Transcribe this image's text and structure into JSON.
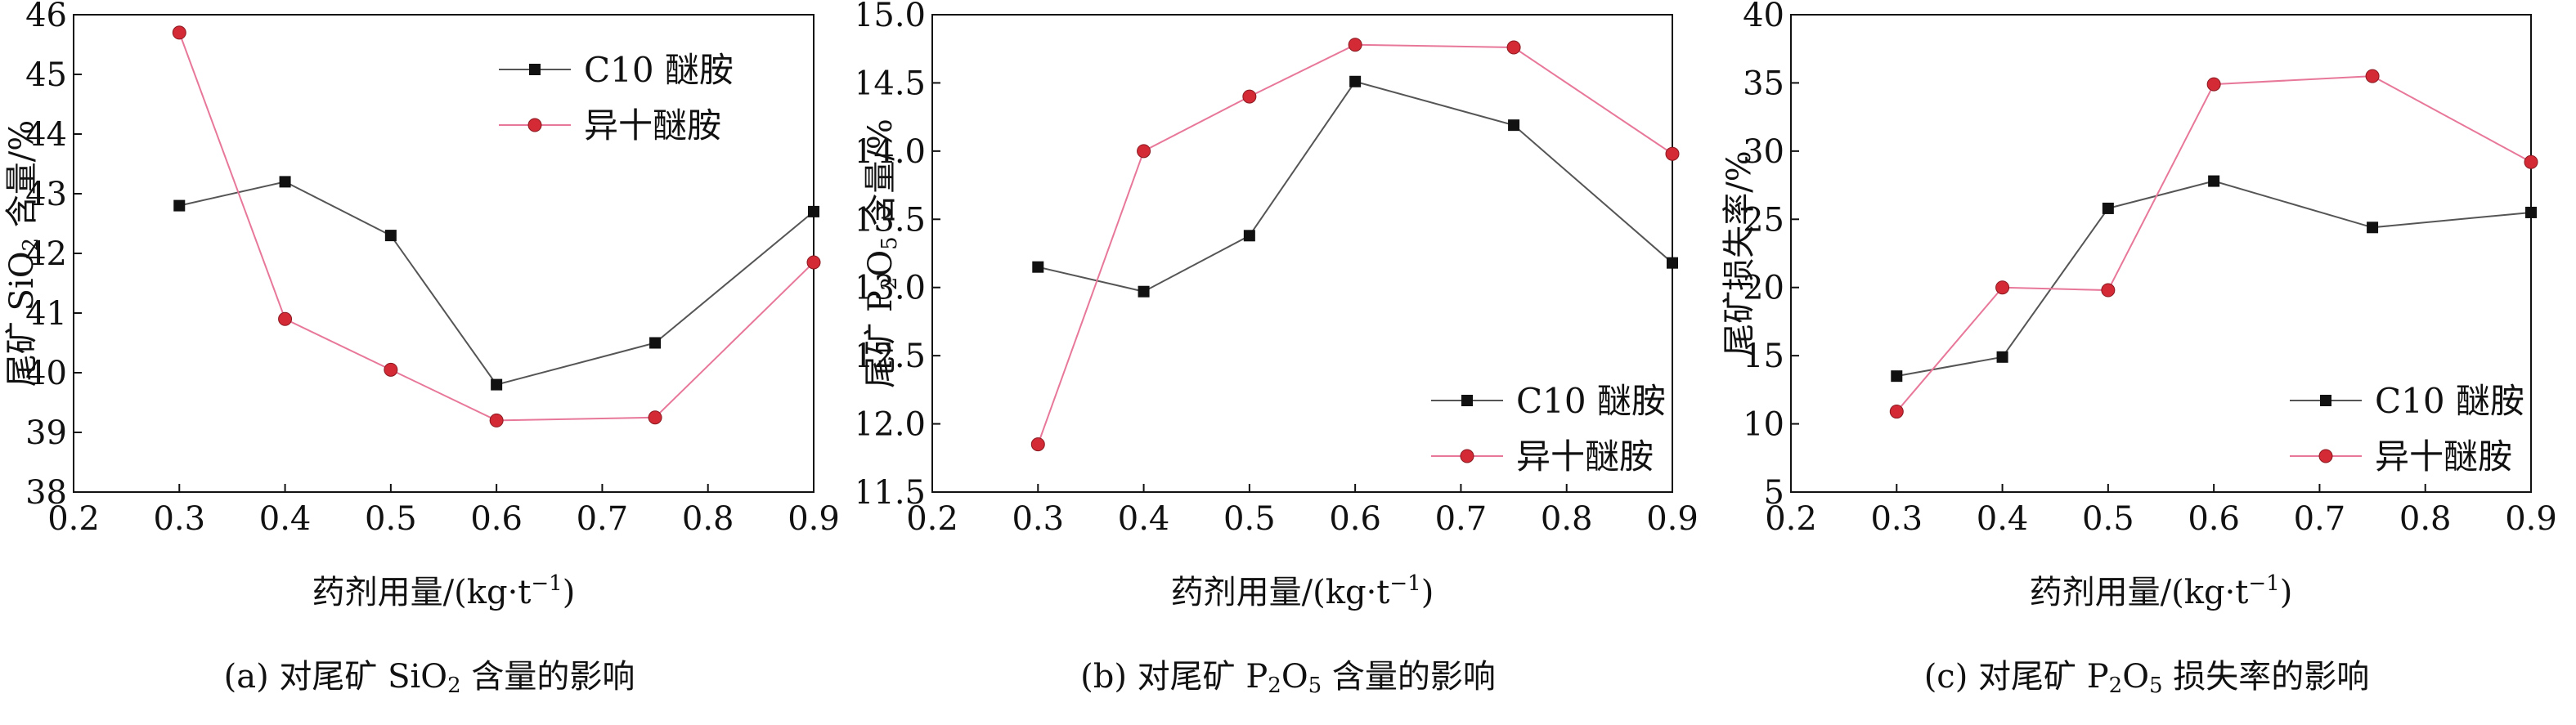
{
  "chart_data": [
    {
      "type": "line",
      "caption": {
        "pre": "(a) 对尾矿 SiO",
        "sub": "2",
        "post": " 含量的影响"
      },
      "xlabel": "药剂用量/(kg·t",
      "xlabel_sup": "−1",
      "xlabel_end": ")",
      "ylabel": {
        "pre": "尾矿 SiO",
        "sub": "2",
        "post": " 含量/%"
      },
      "xlim": [
        0.2,
        0.9
      ],
      "ylim": [
        38,
        46
      ],
      "xticks": [
        "0.2",
        "0.3",
        "0.4",
        "0.5",
        "0.6",
        "0.7",
        "0.8",
        "0.9"
      ],
      "yticks": [
        "38",
        "39",
        "40",
        "41",
        "42",
        "43",
        "44",
        "45",
        "46"
      ],
      "legend": "top-right",
      "x": [
        0.3,
        0.4,
        0.5,
        0.6,
        0.75,
        0.9
      ],
      "series": [
        {
          "name": "C10 醚胺",
          "color": "#555555",
          "markerColor": "#111111",
          "marker": "square",
          "values": [
            42.8,
            43.2,
            42.3,
            39.8,
            40.5,
            42.7
          ]
        },
        {
          "name": "异十醚胺",
          "color": "#e8789a",
          "markerColor": "#d42a35",
          "marker": "circle",
          "values": [
            45.7,
            40.9,
            40.05,
            39.2,
            39.25,
            41.85
          ]
        }
      ]
    },
    {
      "type": "line",
      "caption": {
        "pre": "(b) 对尾矿 P",
        "sub": "2",
        "mid": "O",
        "sub2": "5",
        "post": " 含量的影响"
      },
      "xlabel": "药剂用量/(kg·t",
      "xlabel_sup": "−1",
      "xlabel_end": ")",
      "ylabel": {
        "pre": "尾矿 P",
        "sub": "2",
        "mid": "O",
        "sub2": "5",
        "post": " 含量/%"
      },
      "xlim": [
        0.2,
        0.9
      ],
      "ylim": [
        11.5,
        15.0
      ],
      "xticks": [
        "0.2",
        "0.3",
        "0.4",
        "0.5",
        "0.6",
        "0.7",
        "0.8",
        "0.9"
      ],
      "yticks": [
        "11.5",
        "12.0",
        "12.5",
        "13.0",
        "13.5",
        "14.0",
        "14.5",
        "15.0"
      ],
      "legend": "bottom-right",
      "x": [
        0.3,
        0.4,
        0.5,
        0.6,
        0.75,
        0.9
      ],
      "series": [
        {
          "name": "C10 醚胺",
          "color": "#555555",
          "markerColor": "#111111",
          "marker": "square",
          "values": [
            13.15,
            12.97,
            13.38,
            14.51,
            14.19,
            13.18
          ]
        },
        {
          "name": "异十醚胺",
          "color": "#e8789a",
          "markerColor": "#d42a35",
          "marker": "circle",
          "values": [
            11.85,
            14.0,
            14.4,
            14.78,
            14.76,
            13.98
          ]
        }
      ]
    },
    {
      "type": "line",
      "caption": {
        "pre": "(c) 对尾矿 P",
        "sub": "2",
        "mid": "O",
        "sub2": "5",
        "post": " 损失率的影响"
      },
      "xlabel": "药剂用量/(kg·t",
      "xlabel_sup": "−1",
      "xlabel_end": ")",
      "ylabel": {
        "pre": "尾矿损失率/%"
      },
      "xlim": [
        0.2,
        0.9
      ],
      "ylim": [
        5,
        40
      ],
      "xticks": [
        "0.2",
        "0.3",
        "0.4",
        "0.5",
        "0.6",
        "0.7",
        "0.8",
        "0.9"
      ],
      "yticks": [
        "5",
        "10",
        "15",
        "20",
        "25",
        "30",
        "35",
        "40"
      ],
      "legend": "bottom-right",
      "x": [
        0.3,
        0.4,
        0.5,
        0.6,
        0.75,
        0.9
      ],
      "series": [
        {
          "name": "C10 醚胺",
          "color": "#555555",
          "markerColor": "#111111",
          "marker": "square",
          "values": [
            13.5,
            14.9,
            25.8,
            27.8,
            24.4,
            25.5
          ]
        },
        {
          "name": "异十醚胺",
          "color": "#e8789a",
          "markerColor": "#d42a35",
          "marker": "circle",
          "values": [
            10.9,
            20.0,
            19.8,
            34.9,
            35.5,
            29.2
          ]
        }
      ]
    }
  ]
}
